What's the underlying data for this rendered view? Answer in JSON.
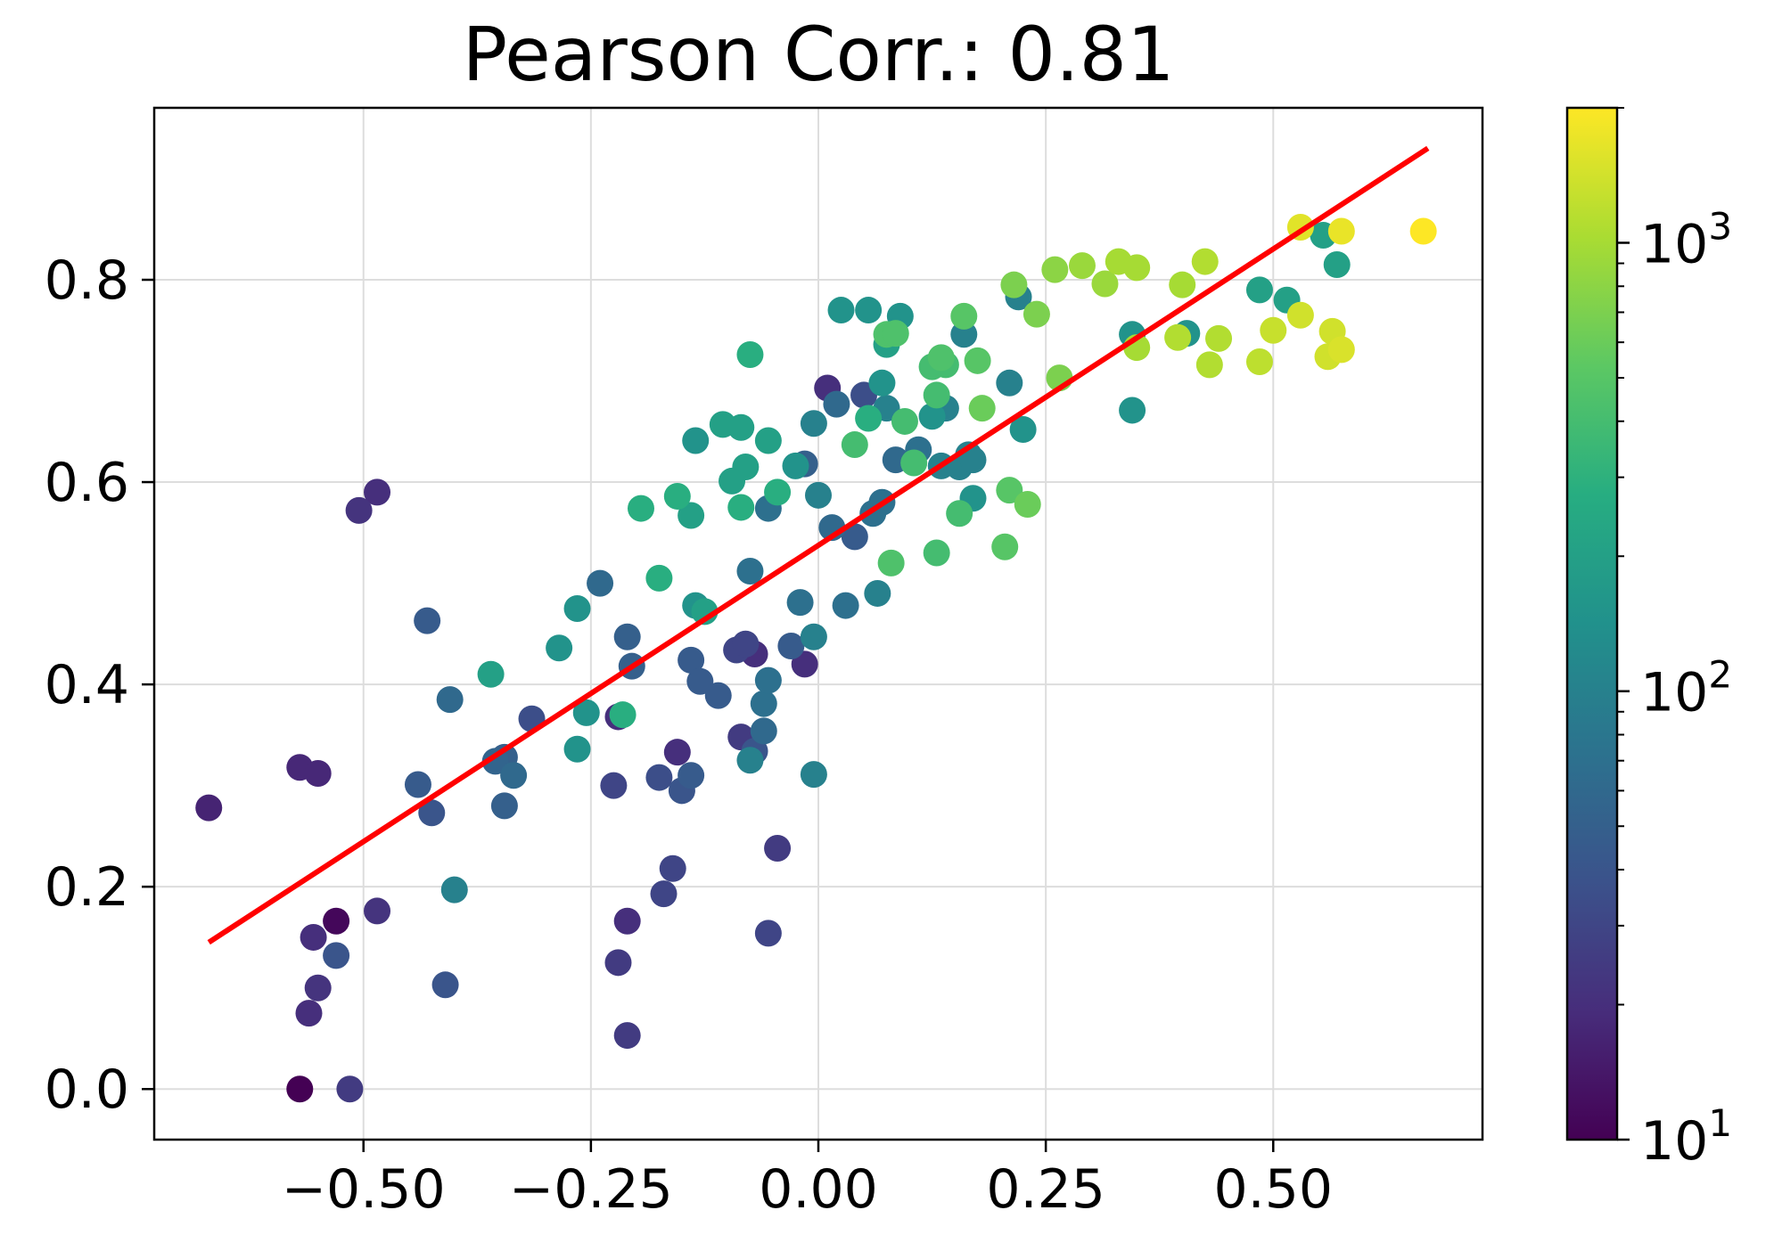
{
  "chart_data": {
    "type": "scatter",
    "title": "Pearson Corr.: 0.81",
    "xlabel": "",
    "ylabel": "",
    "xlim": [
      -0.73,
      0.73
    ],
    "ylim": [
      -0.05,
      0.97
    ],
    "grid": true,
    "x_ticks": [
      -0.5,
      -0.25,
      0.0,
      0.25,
      0.5
    ],
    "x_tick_labels": [
      "−0.50",
      "−0.25",
      "0.00",
      "0.25",
      "0.50"
    ],
    "y_ticks": [
      0.0,
      0.2,
      0.4,
      0.6,
      0.8
    ],
    "y_tick_labels": [
      "0.0",
      "0.2",
      "0.4",
      "0.6",
      "0.8"
    ],
    "regression_line": {
      "x": [
        -0.67,
        0.67
      ],
      "y": [
        0.145,
        0.93
      ],
      "color": "#ff0000"
    },
    "colorbar": {
      "scale": "log",
      "colormap": "viridis",
      "min": 10,
      "max": 2000,
      "ticks": [
        10,
        100,
        1000
      ],
      "tick_labels": [
        {
          "base": "10",
          "exp": "1"
        },
        {
          "base": "10",
          "exp": "2"
        },
        {
          "base": "10",
          "exp": "3"
        }
      ]
    },
    "points": [
      [
        -0.67,
        0.278,
        17
      ],
      [
        -0.57,
        0.0,
        10
      ],
      [
        -0.57,
        0.318,
        18
      ],
      [
        -0.56,
        0.075,
        20
      ],
      [
        -0.555,
        0.15,
        20
      ],
      [
        -0.55,
        0.1,
        22
      ],
      [
        -0.55,
        0.312,
        18
      ],
      [
        -0.53,
        0.132,
        40
      ],
      [
        -0.53,
        0.166,
        11
      ],
      [
        -0.515,
        0.0,
        25
      ],
      [
        -0.505,
        0.572,
        22
      ],
      [
        -0.485,
        0.59,
        20
      ],
      [
        -0.485,
        0.176,
        22
      ],
      [
        -0.44,
        0.301,
        45
      ],
      [
        -0.425,
        0.273,
        40
      ],
      [
        -0.43,
        0.463,
        45
      ],
      [
        -0.405,
        0.385,
        60
      ],
      [
        -0.41,
        0.103,
        40
      ],
      [
        -0.4,
        0.197,
        100
      ],
      [
        -0.36,
        0.41,
        200
      ],
      [
        -0.355,
        0.324,
        55
      ],
      [
        -0.345,
        0.328,
        50
      ],
      [
        -0.345,
        0.28,
        50
      ],
      [
        -0.335,
        0.31,
        60
      ],
      [
        -0.315,
        0.366,
        35
      ],
      [
        -0.285,
        0.436,
        150
      ],
      [
        -0.265,
        0.475,
        150
      ],
      [
        -0.265,
        0.336,
        150
      ],
      [
        -0.255,
        0.372,
        150
      ],
      [
        -0.24,
        0.5,
        60
      ],
      [
        -0.225,
        0.3,
        30
      ],
      [
        -0.22,
        0.125,
        25
      ],
      [
        -0.22,
        0.368,
        20
      ],
      [
        -0.215,
        0.37,
        280
      ],
      [
        -0.21,
        0.166,
        20
      ],
      [
        -0.21,
        0.053,
        25
      ],
      [
        -0.21,
        0.447,
        50
      ],
      [
        -0.205,
        0.418,
        50
      ],
      [
        -0.195,
        0.574,
        280
      ],
      [
        -0.175,
        0.505,
        280
      ],
      [
        -0.175,
        0.308,
        35
      ],
      [
        -0.17,
        0.193,
        30
      ],
      [
        -0.16,
        0.218,
        30
      ],
      [
        -0.155,
        0.586,
        280
      ],
      [
        -0.155,
        0.333,
        20
      ],
      [
        -0.15,
        0.295,
        40
      ],
      [
        -0.14,
        0.31,
        45
      ],
      [
        -0.14,
        0.424,
        45
      ],
      [
        -0.135,
        0.478,
        150
      ],
      [
        -0.14,
        0.567,
        200
      ],
      [
        -0.135,
        0.641,
        150
      ],
      [
        -0.13,
        0.403,
        45
      ],
      [
        -0.125,
        0.472,
        200
      ],
      [
        -0.11,
        0.389,
        45
      ],
      [
        -0.105,
        0.657,
        200
      ],
      [
        -0.095,
        0.601,
        200
      ],
      [
        -0.09,
        0.434,
        30
      ],
      [
        -0.085,
        0.348,
        25
      ],
      [
        -0.085,
        0.575,
        280
      ],
      [
        -0.085,
        0.654,
        200
      ],
      [
        -0.075,
        0.726,
        280
      ],
      [
        -0.08,
        0.44,
        30
      ],
      [
        -0.08,
        0.615,
        200
      ],
      [
        -0.075,
        0.512,
        70
      ],
      [
        -0.075,
        0.325,
        100
      ],
      [
        -0.07,
        0.43,
        20
      ],
      [
        -0.07,
        0.334,
        40
      ],
      [
        -0.06,
        0.354,
        60
      ],
      [
        -0.06,
        0.381,
        70
      ],
      [
        -0.055,
        0.404,
        70
      ],
      [
        -0.055,
        0.574,
        70
      ],
      [
        -0.055,
        0.641,
        200
      ],
      [
        -0.055,
        0.154,
        30
      ],
      [
        -0.045,
        0.59,
        280
      ],
      [
        -0.045,
        0.238,
        25
      ],
      [
        -0.03,
        0.438,
        45
      ],
      [
        -0.025,
        0.616,
        150
      ],
      [
        -0.015,
        0.618,
        50
      ],
      [
        -0.02,
        0.481,
        70
      ],
      [
        -0.015,
        0.42,
        20
      ],
      [
        -0.005,
        0.311,
        100
      ],
      [
        -0.005,
        0.447,
        100
      ],
      [
        -0.005,
        0.658,
        100
      ],
      [
        0.0,
        0.587,
        100
      ],
      [
        0.01,
        0.693,
        20
      ],
      [
        0.015,
        0.555,
        60
      ],
      [
        0.02,
        0.677,
        60
      ],
      [
        0.025,
        0.77,
        150
      ],
      [
        0.03,
        0.478,
        70
      ],
      [
        0.04,
        0.546,
        45
      ],
      [
        0.04,
        0.637,
        400
      ],
      [
        0.05,
        0.686,
        35
      ],
      [
        0.055,
        0.663,
        280
      ],
      [
        0.055,
        0.77,
        150
      ],
      [
        0.06,
        0.569,
        70
      ],
      [
        0.065,
        0.49,
        100
      ],
      [
        0.07,
        0.58,
        70
      ],
      [
        0.07,
        0.698,
        150
      ],
      [
        0.075,
        0.673,
        100
      ],
      [
        0.075,
        0.736,
        200
      ],
      [
        0.075,
        0.746,
        450
      ],
      [
        0.08,
        0.52,
        450
      ],
      [
        0.085,
        0.747,
        450
      ],
      [
        0.085,
        0.622,
        60
      ],
      [
        0.09,
        0.764,
        150
      ],
      [
        0.095,
        0.66,
        400
      ],
      [
        0.105,
        0.619,
        400
      ],
      [
        0.11,
        0.632,
        70
      ],
      [
        0.125,
        0.665,
        150
      ],
      [
        0.125,
        0.714,
        400
      ],
      [
        0.13,
        0.53,
        400
      ],
      [
        0.13,
        0.686,
        400
      ],
      [
        0.135,
        0.723,
        450
      ],
      [
        0.135,
        0.616,
        100
      ],
      [
        0.14,
        0.673,
        100
      ],
      [
        0.14,
        0.716,
        400
      ],
      [
        0.155,
        0.615,
        100
      ],
      [
        0.155,
        0.569,
        400
      ],
      [
        0.16,
        0.764,
        500
      ],
      [
        0.16,
        0.746,
        100
      ],
      [
        0.165,
        0.627,
        100
      ],
      [
        0.17,
        0.622,
        100
      ],
      [
        0.17,
        0.584,
        150
      ],
      [
        0.175,
        0.72,
        500
      ],
      [
        0.18,
        0.673,
        600
      ],
      [
        0.205,
        0.536,
        500
      ],
      [
        0.21,
        0.592,
        500
      ],
      [
        0.21,
        0.698,
        100
      ],
      [
        0.215,
        0.795,
        700
      ],
      [
        0.22,
        0.783,
        100
      ],
      [
        0.225,
        0.652,
        150
      ],
      [
        0.23,
        0.578,
        600
      ],
      [
        0.24,
        0.766,
        700
      ],
      [
        0.26,
        0.81,
        800
      ],
      [
        0.265,
        0.703,
        700
      ],
      [
        0.29,
        0.814,
        900
      ],
      [
        0.315,
        0.796,
        900
      ],
      [
        0.33,
        0.818,
        1000
      ],
      [
        0.345,
        0.746,
        150
      ],
      [
        0.345,
        0.671,
        150
      ],
      [
        0.35,
        0.733,
        1000
      ],
      [
        0.35,
        0.812,
        1000
      ],
      [
        0.395,
        0.743,
        1100
      ],
      [
        0.4,
        0.795,
        1000
      ],
      [
        0.405,
        0.747,
        150
      ],
      [
        0.425,
        0.818,
        1100
      ],
      [
        0.43,
        0.716,
        1100
      ],
      [
        0.44,
        0.742,
        1100
      ],
      [
        0.485,
        0.719,
        1200
      ],
      [
        0.485,
        0.79,
        200
      ],
      [
        0.5,
        0.75,
        1300
      ],
      [
        0.515,
        0.78,
        200
      ],
      [
        0.53,
        0.765,
        1400
      ],
      [
        0.53,
        0.852,
        1600
      ],
      [
        0.555,
        0.844,
        200
      ],
      [
        0.56,
        0.724,
        1400
      ],
      [
        0.565,
        0.749,
        1400
      ],
      [
        0.57,
        0.815,
        200
      ],
      [
        0.575,
        0.848,
        1700
      ],
      [
        0.575,
        0.731,
        1500
      ],
      [
        0.665,
        0.848,
        2000
      ]
    ]
  }
}
